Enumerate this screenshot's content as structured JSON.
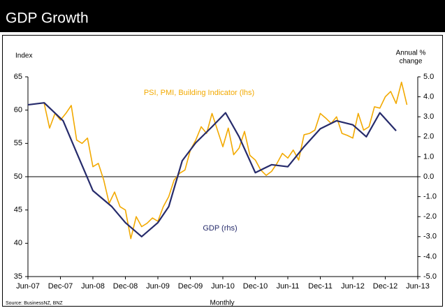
{
  "chart_data": {
    "type": "line",
    "title": "GDP Growth",
    "y_label": "Index",
    "y2_label": [
      "Annual %",
      "change"
    ],
    "x_label": "Monthly",
    "source": "Source: BusinessNZ, BNZ",
    "xlim": [
      0,
      72
    ],
    "xticks": [
      {
        "value": 0,
        "label": "Jun-07"
      },
      {
        "value": 6,
        "label": "Dec-07"
      },
      {
        "value": 12,
        "label": "Jun-08"
      },
      {
        "value": 18,
        "label": "Dec-08"
      },
      {
        "value": 24,
        "label": "Jun-09"
      },
      {
        "value": 30,
        "label": "Dec-09"
      },
      {
        "value": 36,
        "label": "Jun-10"
      },
      {
        "value": 42,
        "label": "Dec-10"
      },
      {
        "value": 48,
        "label": "Jun-11"
      },
      {
        "value": 54,
        "label": "Dec-11"
      },
      {
        "value": 60,
        "label": "Jun-12"
      },
      {
        "value": 66,
        "label": "Dec-12"
      },
      {
        "value": 72,
        "label": "Jun-13"
      }
    ],
    "ylim": [
      35,
      65
    ],
    "yticks": [
      35,
      40,
      45,
      50,
      55,
      60,
      65
    ],
    "y2lim": [
      -5,
      5
    ],
    "y2ticks": [
      {
        "value": -5,
        "label": "-5.0"
      },
      {
        "value": -4,
        "label": "-4.0"
      },
      {
        "value": -3,
        "label": "-3.0"
      },
      {
        "value": -2,
        "label": "-2.0"
      },
      {
        "value": -1,
        "label": "-1.0"
      },
      {
        "value": 0,
        "label": "0.0"
      },
      {
        "value": 1,
        "label": "1.0"
      },
      {
        "value": 2,
        "label": "2.0"
      },
      {
        "value": 3,
        "label": "3.0"
      },
      {
        "value": 4,
        "label": "4.0"
      },
      {
        "value": 5,
        "label": "5.0"
      }
    ],
    "zero_line": true,
    "series": [
      {
        "name": "PSI, PMI, Building Indicator (lhs)",
        "color": "#f2a900",
        "x": [
          3,
          4,
          5,
          6,
          7,
          8,
          9,
          10,
          11,
          12,
          13,
          14,
          15,
          16,
          17,
          18,
          19,
          20,
          21,
          22,
          23,
          24,
          25,
          26,
          27,
          28,
          29,
          30,
          31,
          32,
          33,
          34,
          35,
          36,
          37,
          38,
          39,
          40,
          41,
          42,
          43,
          44,
          45,
          46,
          47,
          48,
          49,
          50,
          51,
          52,
          53,
          54,
          55,
          56,
          57,
          58,
          59,
          60,
          61,
          62,
          63,
          64,
          65,
          66,
          67,
          68,
          69,
          70
        ],
        "values": [
          61,
          57.3,
          59.5,
          58.5,
          59.5,
          60.7,
          55.5,
          55,
          55.8,
          51.5,
          52,
          49.5,
          46,
          47.7,
          45.5,
          45,
          40.7,
          44,
          42.5,
          43,
          43.8,
          43.3,
          45.5,
          47,
          49.5,
          50.5,
          51,
          54,
          55.5,
          57.5,
          56.5,
          59.5,
          57,
          54.5,
          57.3,
          53.3,
          54.3,
          56.8,
          53.2,
          52.5,
          51,
          50.2,
          50.8,
          52,
          53.5,
          52.8,
          54,
          52.5,
          56.3,
          56.5,
          57,
          59.5,
          58.8,
          58,
          59,
          56.5,
          56.2,
          55.8,
          59.5,
          57,
          57.5,
          60.5,
          60.3,
          62,
          62.8,
          61,
          64.2,
          60.8
        ]
      },
      {
        "name": "GDP (rhs)",
        "color": "#262b6b",
        "axis": "y2",
        "x": [
          0,
          3,
          6.5,
          9,
          12,
          15.5,
          18,
          21,
          24,
          26,
          28.5,
          31,
          34,
          36.5,
          39,
          42,
          45,
          48,
          51,
          54,
          57,
          60,
          62.5,
          65,
          68
        ],
        "values": [
          3.6,
          3.7,
          2.8,
          1.2,
          -0.7,
          -1.5,
          -2.3,
          -3.0,
          -2.3,
          -1.5,
          0.8,
          1.7,
          2.5,
          3.2,
          2.0,
          0.2,
          0.6,
          0.5,
          1.5,
          2.4,
          2.8,
          2.6,
          2.0,
          3.2,
          2.3
        ]
      }
    ]
  }
}
